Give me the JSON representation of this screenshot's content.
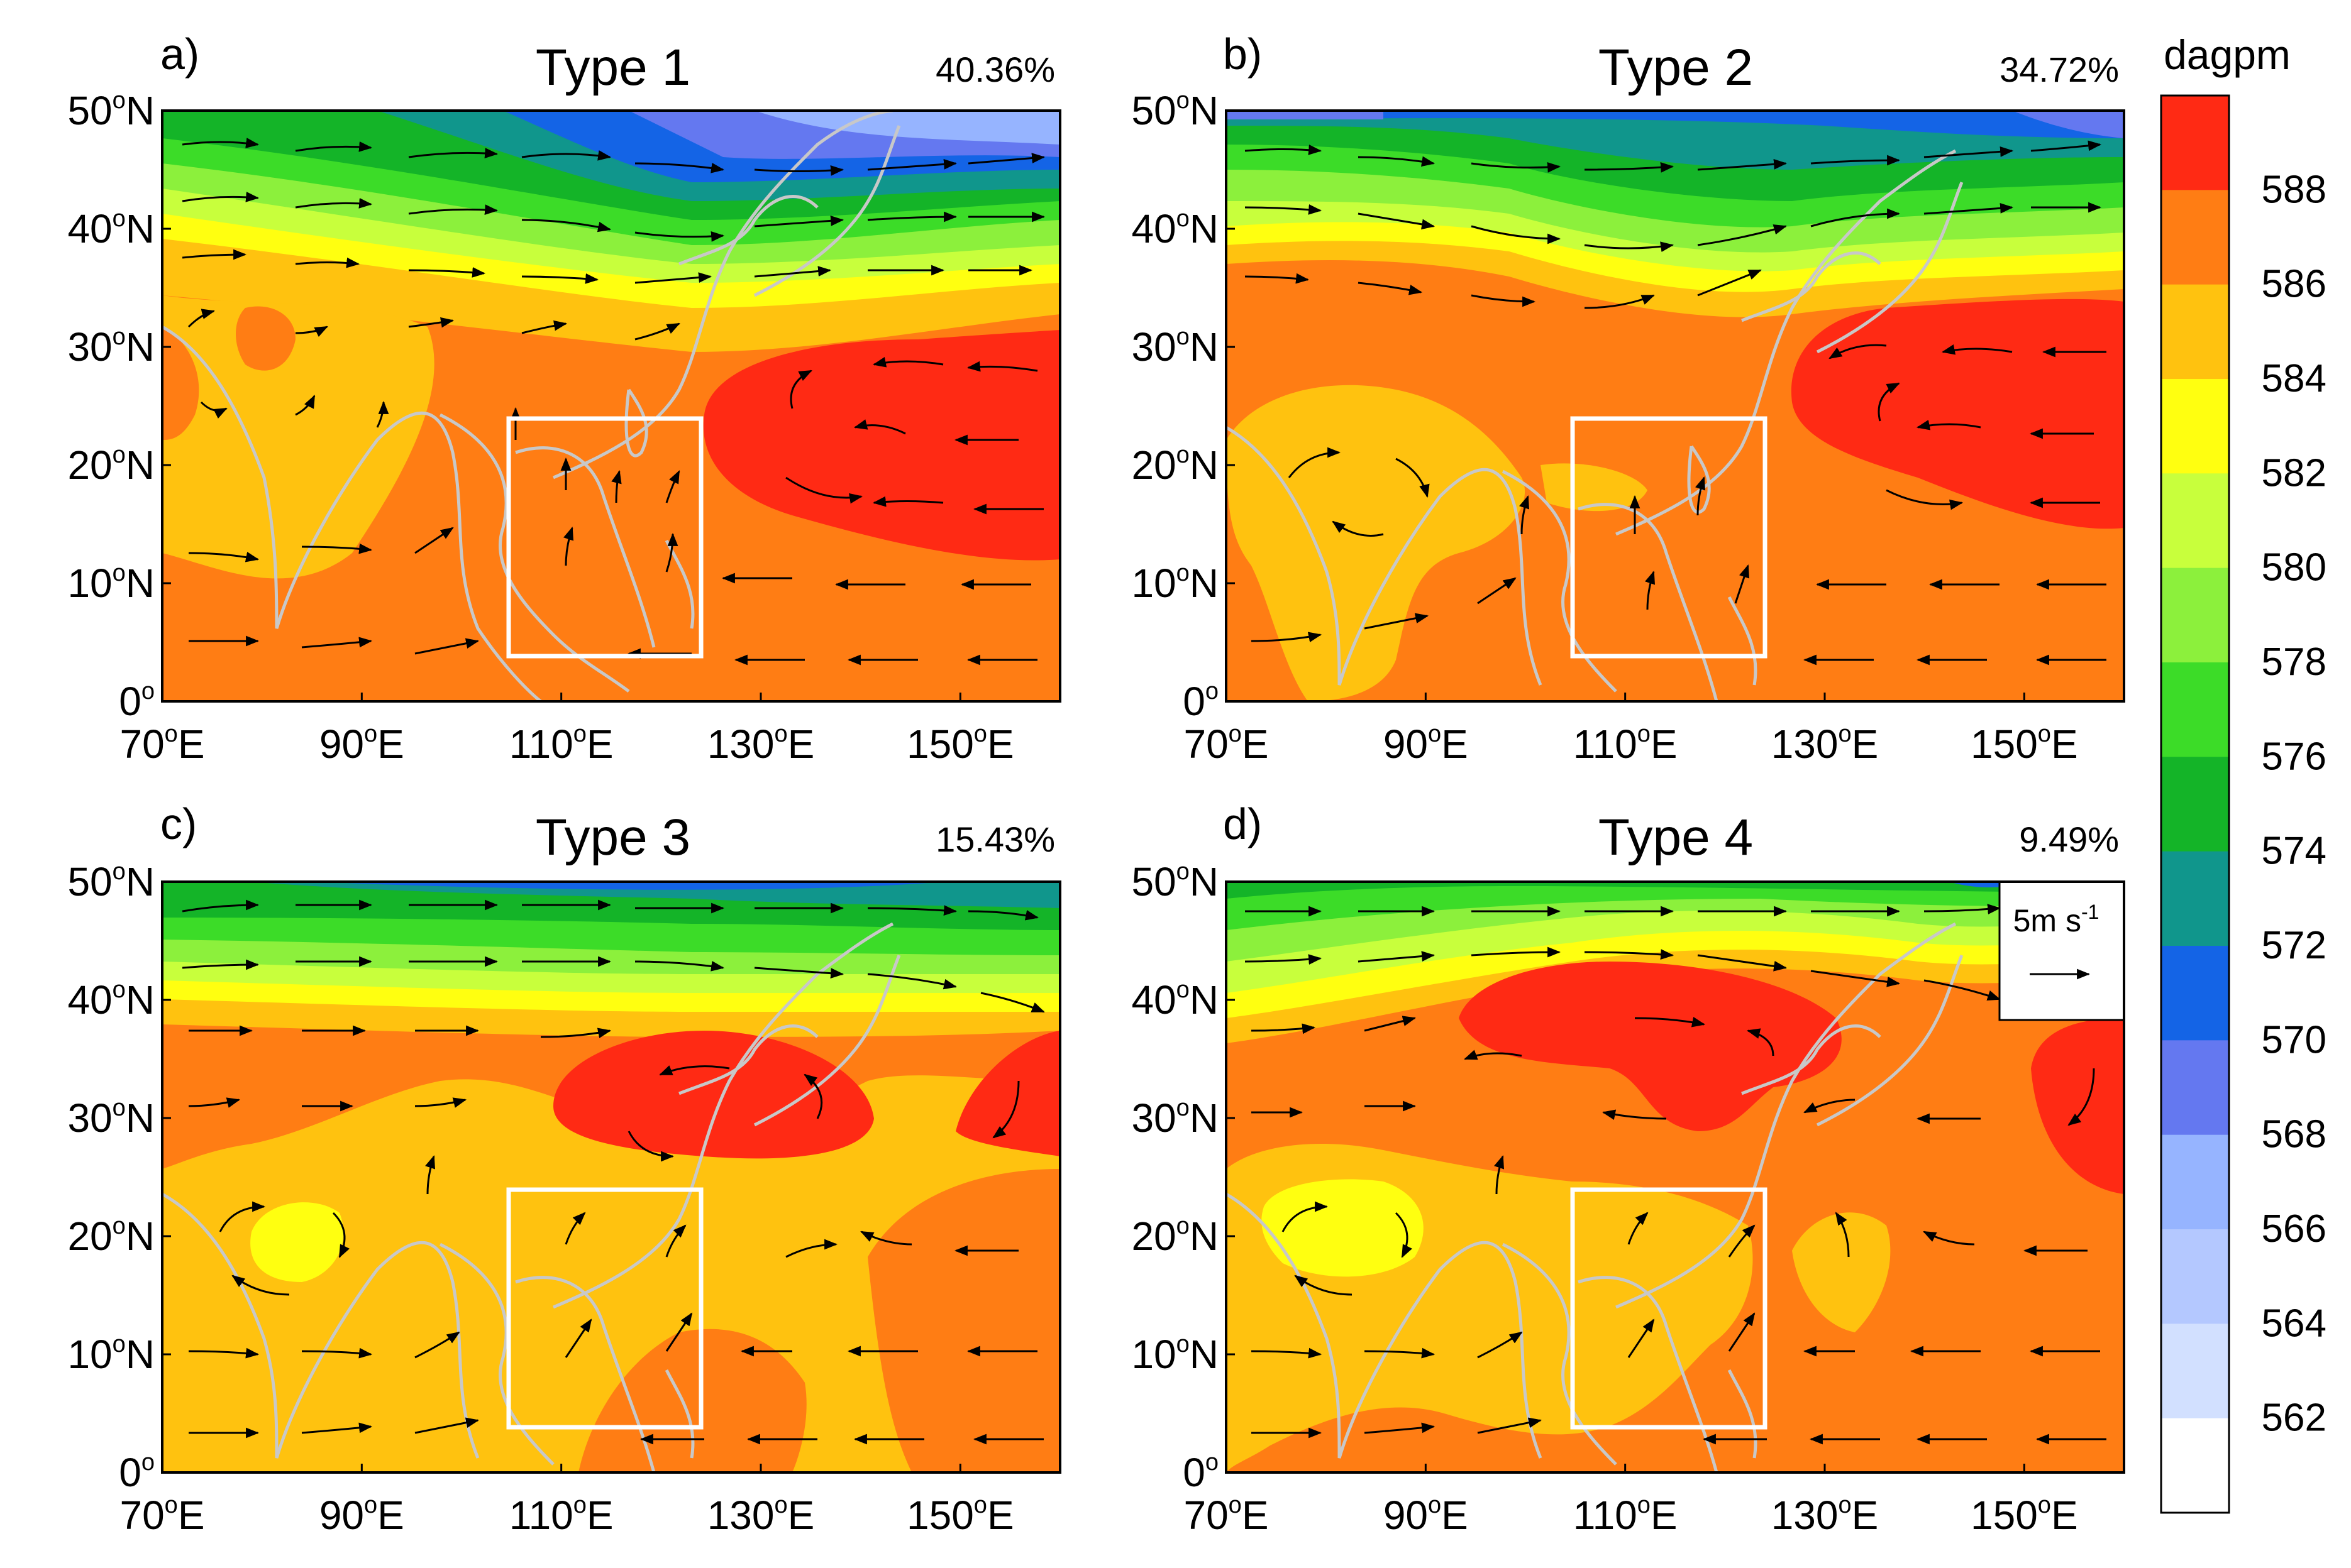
{
  "figure": {
    "unit_label": "dagpm",
    "colorbar": {
      "levels": [
        "588",
        "586",
        "584",
        "582",
        "580",
        "578",
        "576",
        "574",
        "572",
        "570",
        "568",
        "566",
        "564",
        "562"
      ],
      "colors": [
        "#ff2a14",
        "#ff7d14",
        "#ffc20f",
        "#ffff10",
        "#c8ff3c",
        "#8cf03c",
        "#3cdc28",
        "#14b428",
        "#10968c",
        "#1464e6",
        "#6478f0",
        "#96b4ff",
        "#b4c8ff",
        "#d2e0ff",
        "#ffffff"
      ]
    },
    "vector_reference": {
      "label": "5m s",
      "exponent": "-1"
    },
    "panels": [
      {
        "letter": "a)",
        "title": "Type 1",
        "percent": "40.36%"
      },
      {
        "letter": "b)",
        "title": "Type 2",
        "percent": "34.72%"
      },
      {
        "letter": "c)",
        "title": "Type 3",
        "percent": "15.43%"
      },
      {
        "letter": "d)",
        "title": "Type 4",
        "percent": "9.49%"
      }
    ],
    "lat_ticks": [
      {
        "deg": "50",
        "hemi": "N"
      },
      {
        "deg": "40",
        "hemi": "N"
      },
      {
        "deg": "30",
        "hemi": "N"
      },
      {
        "deg": "20",
        "hemi": "N"
      },
      {
        "deg": "10",
        "hemi": "N"
      },
      {
        "deg": "0",
        "hemi": ""
      }
    ],
    "lon_ticks": [
      {
        "deg": "70",
        "hemi": "E"
      },
      {
        "deg": "90",
        "hemi": "E"
      },
      {
        "deg": "110",
        "hemi": "E"
      },
      {
        "deg": "130",
        "hemi": "E"
      },
      {
        "deg": "150",
        "hemi": "E"
      }
    ],
    "map_extent": {
      "lon": [
        70,
        160
      ],
      "lat": [
        0,
        50
      ]
    },
    "study_box": {
      "lon": [
        105,
        124
      ],
      "lat": [
        4,
        24
      ]
    }
  }
}
